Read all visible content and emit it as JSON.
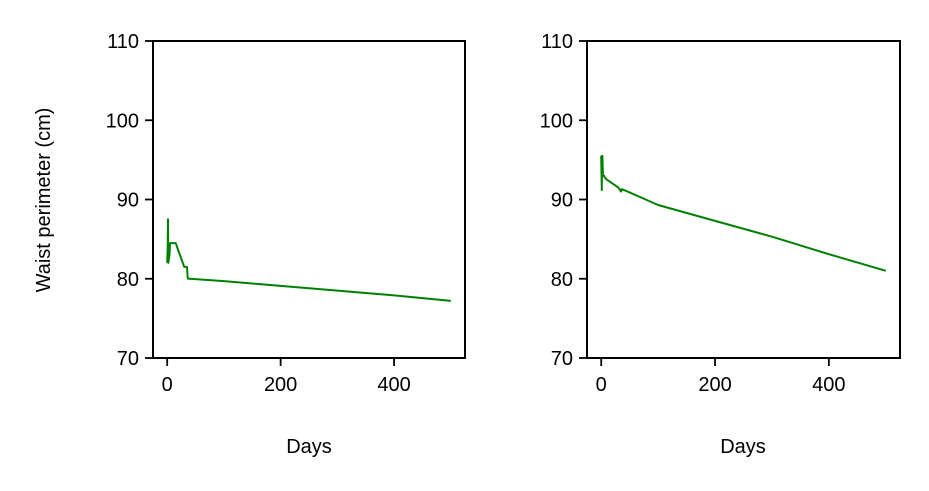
{
  "colors": {
    "series": "#008000",
    "axis": "#000000",
    "background": "#ffffff"
  },
  "chart_data": [
    {
      "type": "line",
      "title": "",
      "xlabel": "Days",
      "ylabel": "Waist perimeter (cm)",
      "xlim": [
        -25,
        525
      ],
      "ylim": [
        70,
        110
      ],
      "xticks": [
        0,
        200,
        400
      ],
      "yticks": [
        70,
        80,
        90,
        100,
        110
      ],
      "xtick_labels": [
        "0",
        "200",
        "400"
      ],
      "ytick_labels": [
        "70",
        "80",
        "90",
        "100",
        "110"
      ],
      "grid": false,
      "series": [
        {
          "x": [
            0,
            1,
            1.5,
            2,
            3,
            4,
            5,
            6,
            7,
            10,
            15,
            20,
            25,
            30,
            35,
            36,
            37,
            40,
            100,
            200,
            300,
            400,
            500
          ],
          "y": [
            82,
            84,
            87.5,
            82,
            82.5,
            83,
            84.5,
            84.5,
            84.5,
            84.5,
            84.5,
            83.5,
            82.5,
            81.5,
            81.5,
            80.2,
            80,
            80,
            79.7,
            79.1,
            78.5,
            77.9,
            77.2
          ]
        }
      ]
    },
    {
      "type": "line",
      "title": "",
      "xlabel": "Days",
      "ylabel": "",
      "xlim": [
        -25,
        525
      ],
      "ylim": [
        70,
        110
      ],
      "xticks": [
        0,
        200,
        400
      ],
      "yticks": [
        70,
        80,
        90,
        100,
        110
      ],
      "xtick_labels": [
        "0",
        "200",
        "400"
      ],
      "ytick_labels": [
        "70",
        "80",
        "90",
        "100",
        "110"
      ],
      "grid": false,
      "series": [
        {
          "x": [
            0,
            1,
            1.5,
            2,
            3,
            4,
            5,
            6,
            10,
            20,
            30,
            33,
            35,
            36,
            40,
            100,
            200,
            300,
            400,
            500
          ],
          "y": [
            95.5,
            91.2,
            95.5,
            95.5,
            93,
            93,
            93,
            92.8,
            92.5,
            92,
            91.5,
            91.2,
            91,
            91.3,
            91.2,
            89.3,
            87.3,
            85.3,
            83.1,
            81
          ]
        }
      ]
    }
  ]
}
